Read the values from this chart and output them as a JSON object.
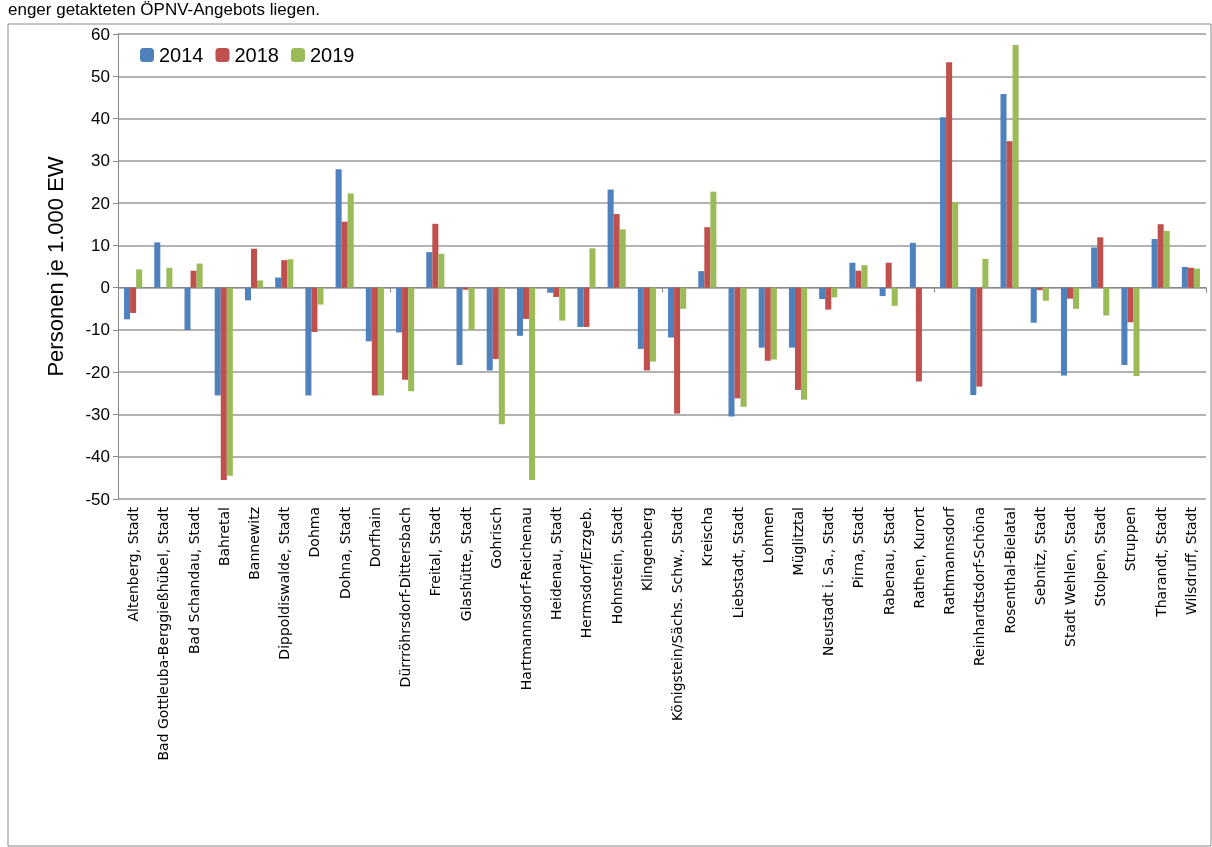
{
  "chart_data": {
    "type": "bar",
    "ylabel": "Personen je 1.000 EW",
    "annotations": [
      "enger getakteten ÖPNV-Angebots liegen."
    ],
    "categories": [
      "Altenberg, Stadt",
      "Bad Gottleuba-Berggießhübel, Stadt",
      "Bad Schandau, Stadt",
      "Bahretal",
      "Bannewitz",
      "Dippoldiswalde, Stadt",
      "Dohma",
      "Dohna, Stadt",
      "Dorfhain",
      "Dürrröhrsdorf-Dittersbach",
      "Freital, Stadt",
      "Glashütte, Stadt",
      "Gohrisch",
      "Hartmannsdorf-Reichenau",
      "Heidenau, Stadt",
      "Hermsdorf/Erzgeb.",
      "Hohnstein, Stadt",
      "Klingenberg",
      "Königstein/Sächs. Schw., Stadt",
      "Kreischa",
      "Liebstadt, Stadt",
      "Lohmen",
      "Müglitztal",
      "Neustadt i. Sa., Stadt",
      "Pirna, Stadt",
      "Rabenau, Stadt",
      "Rathen, Kurort",
      "Rathmannsdorf",
      "Reinhardtsdorf-Schöna",
      "Rosenthal-Bielatal",
      "Sebnitz, Stadt",
      "Stadt Wehlen, Stadt",
      "Stolpen, Stadt",
      "Struppen",
      "Tharandt, Stadt",
      "Wilsdruff, Stadt"
    ],
    "series": [
      {
        "name": "2014",
        "color": "#4f81bd",
        "values": [
          -7.5,
          10.7,
          -10,
          -25.5,
          -3,
          2.4,
          -25.5,
          28,
          -12.7,
          -10.6,
          8.4,
          -18.3,
          -19.6,
          -11.4,
          -1.2,
          -9.3,
          23.2,
          -14.5,
          -11.8,
          3.9,
          -30.5,
          -14.2,
          -14.2,
          -2.7,
          5.9,
          -2,
          10.6,
          40.3,
          -25.4,
          45.8,
          -8.3,
          -20.8,
          9.5,
          -18.3,
          11.5,
          4.9
        ]
      },
      {
        "name": "2018",
        "color": "#c0504d",
        "values": [
          -6,
          0,
          4,
          -45.5,
          9.2,
          6.5,
          -10.5,
          15.6,
          -25.5,
          -21.8,
          15.1,
          -0.5,
          -16.9,
          -7.4,
          -2.2,
          -9.3,
          17.4,
          -19.6,
          -29.8,
          14.3,
          -26.2,
          -17.3,
          -24.2,
          -5.2,
          4,
          5.9,
          -22.2,
          53.3,
          -23.4,
          34.6,
          -0.6,
          -2.6,
          11.9,
          -8.2,
          15,
          4.7
        ]
      },
      {
        "name": "2019",
        "color": "#9bbb59",
        "values": [
          4.3,
          4.7,
          5.7,
          -44.5,
          1.7,
          6.7,
          -4,
          22.3,
          -25.5,
          -24.5,
          8,
          -10,
          -32.3,
          -45.5,
          -7.8,
          9.3,
          13.8,
          -17.5,
          -5,
          22.7,
          -28.2,
          -17,
          -26.5,
          -2.3,
          5.3,
          -4.3,
          0,
          20.2,
          6.8,
          57.4,
          -3.1,
          -5,
          -6.6,
          -20.9,
          13.4,
          4.5
        ]
      }
    ],
    "ylim": [
      -50,
      60
    ],
    "yticks": [
      -50,
      -40,
      -30,
      -20,
      -10,
      0,
      10,
      20,
      30,
      40,
      50,
      60
    ],
    "grid": "y",
    "legend": "top left"
  }
}
